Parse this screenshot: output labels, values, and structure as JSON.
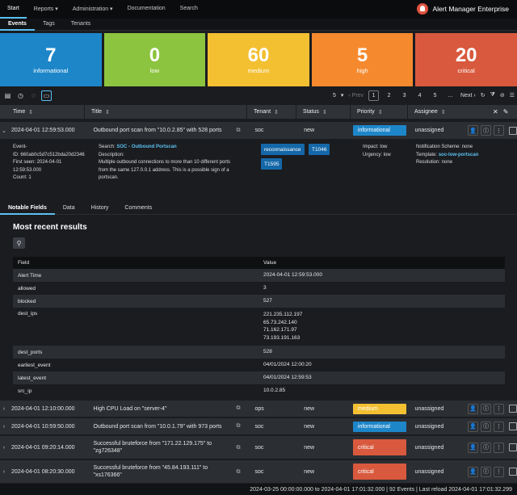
{
  "nav": {
    "items": [
      "Start",
      "Reports ▾",
      "Administration ▾",
      "Documentation",
      "Search"
    ],
    "brand": "Alert Manager Enterprise"
  },
  "subnav": {
    "tabs": [
      "Events",
      "Tags",
      "Tenants"
    ]
  },
  "tiles": [
    {
      "count": "7",
      "label": "informational",
      "color": "#1d86c9"
    },
    {
      "count": "0",
      "label": "low",
      "color": "#8dc43f"
    },
    {
      "count": "60",
      "label": "medium",
      "color": "#f3c032"
    },
    {
      "count": "5",
      "label": "high",
      "color": "#f5892d"
    },
    {
      "count": "20",
      "label": "critical",
      "color": "#d8593d"
    }
  ],
  "pager": {
    "page_size": "5",
    "prev": "‹ Prev",
    "pages": [
      "1",
      "2",
      "3",
      "4",
      "5",
      "..."
    ],
    "next": "Next ›"
  },
  "columns": {
    "time": "Time",
    "title": "Title",
    "tenant": "Tenant",
    "status": "Status",
    "priority": "Priority",
    "assignee": "Assignee"
  },
  "expanded": {
    "time": "2024-04-01 12:59:53.000",
    "title": "Outbound port scan from \"10.0.2.85\" with 528 ports",
    "tenant": "soc",
    "status": "new",
    "priority": "informational",
    "assignee": "unassigned",
    "event_label": "Event-",
    "event_id": "ID: 660ab0c5d7c512bda20d2346",
    "first_seen": "First seen: 2024-04-01",
    "first_seen_time": "12:59:53.000",
    "count": "Count: 1",
    "search_label": "Search:",
    "search_link": "SOC - Outbound Portscan",
    "description_label": "Description:",
    "description": [
      "Multiple outbound connections to more than 10 different ports",
      "from the same 127.0.0.1 address. This is a possible sign of a",
      "portscan."
    ],
    "tags": [
      "reconnaissance",
      "T1046",
      "T1595"
    ],
    "impact": "Impact: low",
    "urgency": "Urgency: low",
    "notification": "Notification Scheme: none",
    "template_label": "Template:",
    "template_link": "soc-low-portscan",
    "resolution": "Resolution: none"
  },
  "detail_tabs": [
    "Notable Fields",
    "Data",
    "History",
    "Comments"
  ],
  "most_recent": "Most recent results",
  "results": {
    "head": [
      "Field",
      "Value"
    ],
    "rows": [
      {
        "f": "Alert Time",
        "v": [
          "2024-04-01 12:59:53.000"
        ]
      },
      {
        "f": "allowed",
        "v": [
          "3"
        ]
      },
      {
        "f": "blocked",
        "v": [
          "527"
        ]
      },
      {
        "f": "dest_ips",
        "v": [
          "221.235.112.197",
          "65.73.242.140",
          "71.162.171.97",
          "73.193.191.163"
        ]
      },
      {
        "f": "dest_ports",
        "v": [
          "528"
        ]
      },
      {
        "f": "earliest_event",
        "v": [
          "04/01/2024 12:00:20"
        ]
      },
      {
        "f": "latest_event",
        "v": [
          "04/01/2024 12:59:53"
        ]
      },
      {
        "f": "src_ip",
        "v": [
          "10.0.2.85"
        ]
      }
    ]
  },
  "rows": [
    {
      "time": "2024-04-01 12:10:00.000",
      "title": [
        "High CPU Load on \"server-4\""
      ],
      "tenant": "ops",
      "status": "new",
      "priority": "medium",
      "pcolor": "#f3c032",
      "assignee": "unassigned"
    },
    {
      "time": "2024-04-01 10:59:50.000",
      "title": [
        "Outbound port scan from \"10.0.1.79\" with 973 ports"
      ],
      "tenant": "soc",
      "status": "new",
      "priority": "informational",
      "pcolor": "#1d86c9",
      "assignee": "unassigned"
    },
    {
      "time": "2024-04-01 09:20:14.000",
      "title": [
        "Successful bruteforce from \"171.22.129.175\" to",
        "\"zg726348\""
      ],
      "tenant": "soc",
      "status": "new",
      "priority": "critical",
      "pcolor": "#d8593d",
      "assignee": "unassigned"
    },
    {
      "time": "2024-04-01 08:20:30.000",
      "title": [
        "Successful bruteforce from \"45.84.193.111\" to",
        "\"xs176366\""
      ],
      "tenant": "soc",
      "status": "new",
      "priority": "critical",
      "pcolor": "#d8593d",
      "assignee": "unassigned"
    }
  ],
  "footer": "2024-03-25 00:00:00.000 to 2024-04-01 17:01:32.000 | 92 Events | Last reload 2024-04-01 17:01:32.299"
}
